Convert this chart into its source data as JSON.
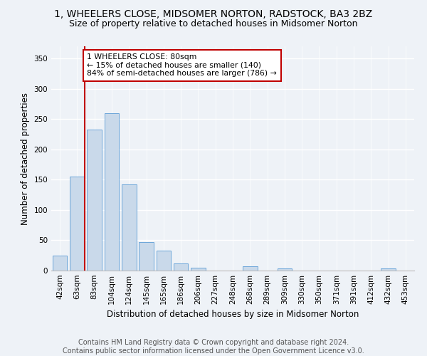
{
  "title_line1": "1, WHEELERS CLOSE, MIDSOMER NORTON, RADSTOCK, BA3 2BZ",
  "title_line2": "Size of property relative to detached houses in Midsomer Norton",
  "xlabel": "Distribution of detached houses by size in Midsomer Norton",
  "ylabel": "Number of detached properties",
  "footer_line1": "Contains HM Land Registry data © Crown copyright and database right 2024.",
  "footer_line2": "Contains public sector information licensed under the Open Government Licence v3.0.",
  "categories": [
    "42sqm",
    "63sqm",
    "83sqm",
    "104sqm",
    "124sqm",
    "145sqm",
    "165sqm",
    "186sqm",
    "206sqm",
    "227sqm",
    "248sqm",
    "268sqm",
    "289sqm",
    "309sqm",
    "330sqm",
    "350sqm",
    "371sqm",
    "391sqm",
    "412sqm",
    "432sqm",
    "453sqm"
  ],
  "values": [
    25,
    155,
    233,
    260,
    142,
    47,
    33,
    12,
    5,
    0,
    0,
    7,
    0,
    4,
    0,
    0,
    0,
    0,
    0,
    3,
    0
  ],
  "bar_color": "#c9d9ea",
  "bar_edge_color": "#5b9bd5",
  "vline_x_index": 1,
  "vline_color": "#c00000",
  "annotation_text_line1": "1 WHEELERS CLOSE: 80sqm",
  "annotation_text_line2": "← 15% of detached houses are smaller (140)",
  "annotation_text_line3": "84% of semi-detached houses are larger (786) →",
  "annotation_box_color": "#ffffff",
  "annotation_box_edge_color": "#c00000",
  "ylim": [
    0,
    370
  ],
  "yticks": [
    0,
    50,
    100,
    150,
    200,
    250,
    300,
    350
  ],
  "background_color": "#eef2f7",
  "grid_color": "#ffffff",
  "title_fontsize": 10,
  "subtitle_fontsize": 9,
  "axis_label_fontsize": 8.5,
  "tick_fontsize": 7.5,
  "footer_fontsize": 7
}
